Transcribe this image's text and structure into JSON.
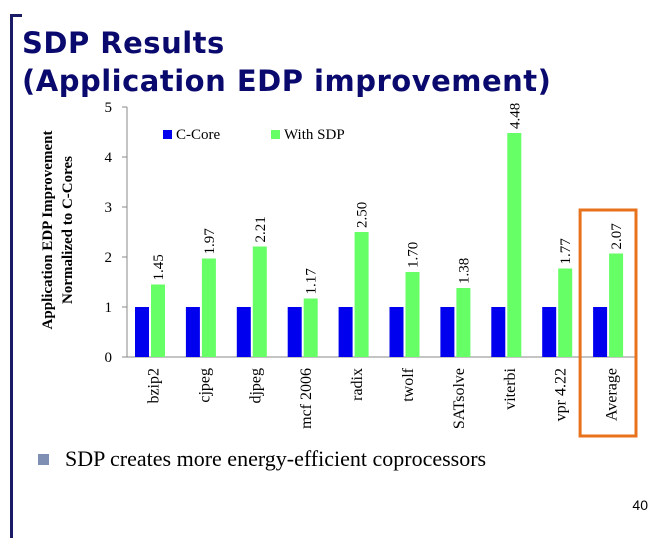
{
  "slide": {
    "title_line1": "SDP Results",
    "title_line2": "(Application EDP improvement)",
    "bullet": "SDP creates more energy-efficient coprocessors",
    "page_number": "40"
  },
  "colors": {
    "title": "#0a0a6e",
    "ccore": "#0000ee",
    "sdp": "#66ff66",
    "highlight": "#e8721c",
    "bullet": "#7f8fb4"
  },
  "chart_data": {
    "type": "bar",
    "ylabel_line1": "Application EDP Improvement",
    "ylabel_line2": "Normalized to C-Cores",
    "ylim": [
      0,
      5
    ],
    "yticks": [
      0,
      1,
      2,
      3,
      4,
      5
    ],
    "categories": [
      "bzip2",
      "cjpeg",
      "djpeg",
      "mcf 2006",
      "radix",
      "twolf",
      "SATsolve",
      "viterbi",
      "vpr 4.22",
      "Average"
    ],
    "series": [
      {
        "name": "C-Core",
        "values": [
          1,
          1,
          1,
          1,
          1,
          1,
          1,
          1,
          1,
          1
        ]
      },
      {
        "name": "With SDP",
        "values": [
          1.45,
          1.97,
          2.21,
          1.17,
          2.5,
          1.7,
          1.38,
          4.48,
          1.77,
          2.07
        ]
      }
    ],
    "data_labels": [
      "1.45",
      "1.97",
      "2.21",
      "1.17",
      "2.50",
      "1.70",
      "1.38",
      "4.48",
      "1.77",
      "2.07"
    ],
    "legend_position": "top-left",
    "highlighted_category": "Average"
  }
}
